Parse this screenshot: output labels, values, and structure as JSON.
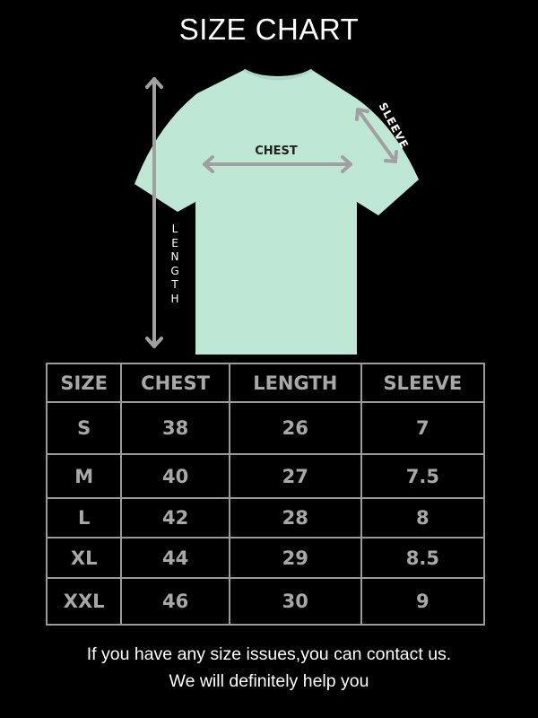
{
  "title": "SIZE CHART",
  "diagram": {
    "chest_label": "CHEST",
    "sleeve_label": "SLEEVE",
    "length_label": "LENGTH",
    "shirt_color": "#bfe8d4",
    "arrow_color": "#a0a0a0"
  },
  "table": {
    "headers": [
      "SIZE",
      "CHEST",
      "LENGTH",
      "SLEEVE"
    ],
    "rows": [
      [
        "S",
        "38",
        "26",
        "7"
      ],
      [
        "M",
        "40",
        "27",
        "7.5"
      ],
      [
        "L",
        "42",
        "28",
        "8"
      ],
      [
        "XL",
        "44",
        "29",
        "8.5"
      ],
      [
        "XXL",
        "46",
        "30",
        "9"
      ]
    ]
  },
  "footer": {
    "line1": "If you have any size issues,you can contact us.",
    "line2": "We will definitely help you"
  }
}
